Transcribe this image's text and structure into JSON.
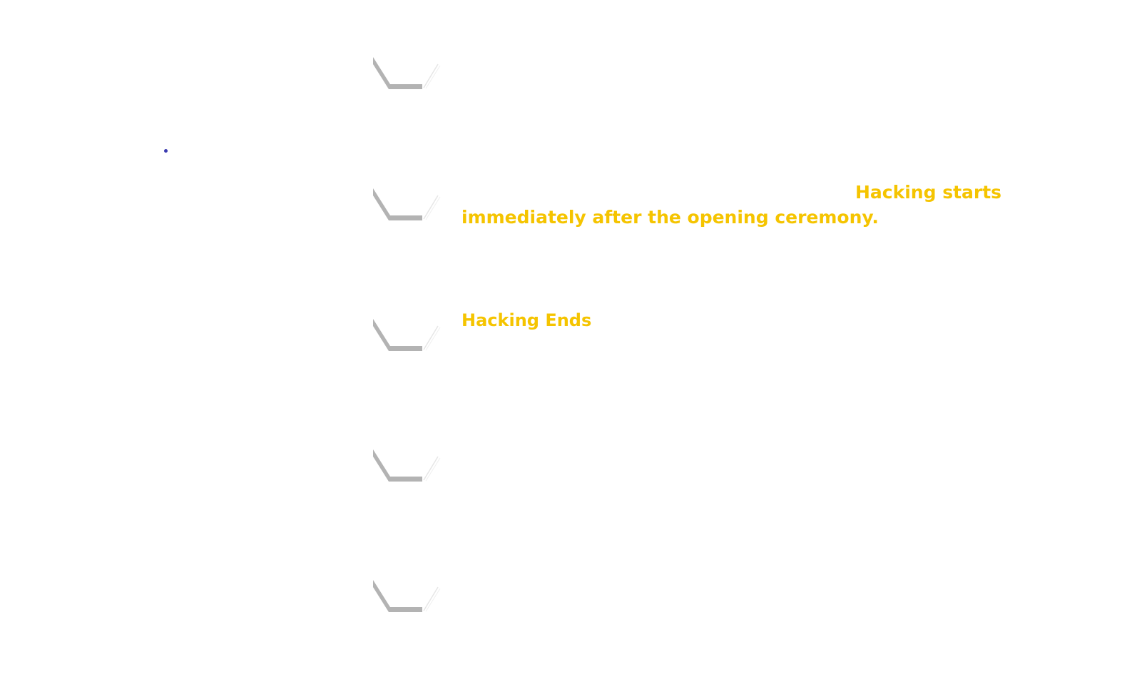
{
  "timeline": {
    "bullet_color": "#3b3bb0",
    "marker_color": "#b3b3b3",
    "accent_color": "#f5c400",
    "events": [
      {
        "text": ""
      },
      {
        "text": "Hacking starts immediately after the opening ceremony."
      },
      {
        "text": "Hacking Ends"
      },
      {
        "text": ""
      },
      {
        "text": ""
      }
    ]
  }
}
